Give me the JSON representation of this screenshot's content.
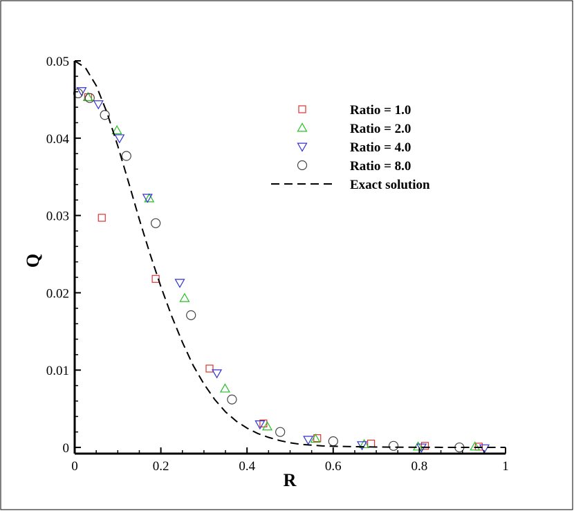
{
  "chart_data": {
    "type": "scatter",
    "title": "",
    "xlabel": "R",
    "ylabel": "Q",
    "xlim": [
      0,
      1
    ],
    "ylim": [
      -0.0008,
      0.05
    ],
    "xticks": [
      0,
      0.2,
      0.4,
      0.6,
      0.8,
      1
    ],
    "xtick_labels": [
      "0",
      "0.2",
      "0.4",
      "0.6",
      "0.8",
      "1"
    ],
    "yticks": [
      0,
      0.01,
      0.02,
      0.03,
      0.04,
      0.05
    ],
    "ytick_labels": [
      "0",
      "0.01",
      "0.02",
      "0.03",
      "0.04",
      "0.05"
    ],
    "grid": false,
    "legend_position": "top-right",
    "series": [
      {
        "name": "Ratio = 1.0",
        "marker": "square",
        "color": "#e03030",
        "x": [
          0.031,
          0.063,
          0.188,
          0.313,
          0.438,
          0.563,
          0.688,
          0.813,
          0.938
        ],
        "y": [
          0.0453,
          0.0297,
          0.0218,
          0.0102,
          0.0031,
          0.0012,
          0.0005,
          0.0002,
          0.0001
        ]
      },
      {
        "name": "Ratio = 2.0",
        "marker": "triangle-up",
        "color": "#22c022",
        "x": [
          0.031,
          0.098,
          0.173,
          0.255,
          0.349,
          0.447,
          0.559,
          0.672,
          0.797,
          0.929
        ],
        "y": [
          0.0453,
          0.041,
          0.0322,
          0.0193,
          0.0076,
          0.0027,
          0.0011,
          0.0004,
          0.0001,
          0.0001
        ]
      },
      {
        "name": "Ratio = 4.0",
        "marker": "triangle-down",
        "color": "#3030d0",
        "x": [
          0.016,
          0.055,
          0.104,
          0.169,
          0.244,
          0.33,
          0.43,
          0.542,
          0.667,
          0.805,
          0.951
        ],
        "y": [
          0.0461,
          0.0444,
          0.04,
          0.0323,
          0.0213,
          0.0096,
          0.003,
          0.001,
          0.0003,
          0.0,
          -0.0001
        ]
      },
      {
        "name": "Ratio = 8.0",
        "marker": "circle",
        "color": "#444444",
        "x": [
          0.008,
          0.035,
          0.07,
          0.12,
          0.188,
          0.27,
          0.365,
          0.477,
          0.6,
          0.74,
          0.893
        ],
        "y": [
          0.0458,
          0.0452,
          0.043,
          0.0377,
          0.029,
          0.0171,
          0.0062,
          0.002,
          0.0008,
          0.0002,
          0.0
        ]
      },
      {
        "name": "Exact solution",
        "marker": "dashed-line",
        "color": "#000000",
        "x": [
          0,
          0.025,
          0.05,
          0.075,
          0.1,
          0.125,
          0.15,
          0.175,
          0.2,
          0.225,
          0.25,
          0.275,
          0.3,
          0.325,
          0.35,
          0.375,
          0.4,
          0.425,
          0.45,
          0.475,
          0.5,
          0.525,
          0.55,
          0.575,
          0.6,
          0.65,
          0.7,
          0.75,
          0.8,
          0.85,
          0.9,
          0.95,
          1.0
        ],
        "y": [
          0.05,
          0.0491,
          0.0468,
          0.0433,
          0.039,
          0.0343,
          0.0295,
          0.025,
          0.0208,
          0.017,
          0.0136,
          0.0106,
          0.0082,
          0.0062,
          0.0046,
          0.0034,
          0.0025,
          0.0018,
          0.0013,
          0.0009,
          0.0006,
          0.0004,
          0.0003,
          0.0002,
          0.00015,
          0.0001,
          5e-05,
          3e-05,
          2e-05,
          1e-05,
          1e-05,
          0.0,
          0.0
        ]
      }
    ]
  }
}
